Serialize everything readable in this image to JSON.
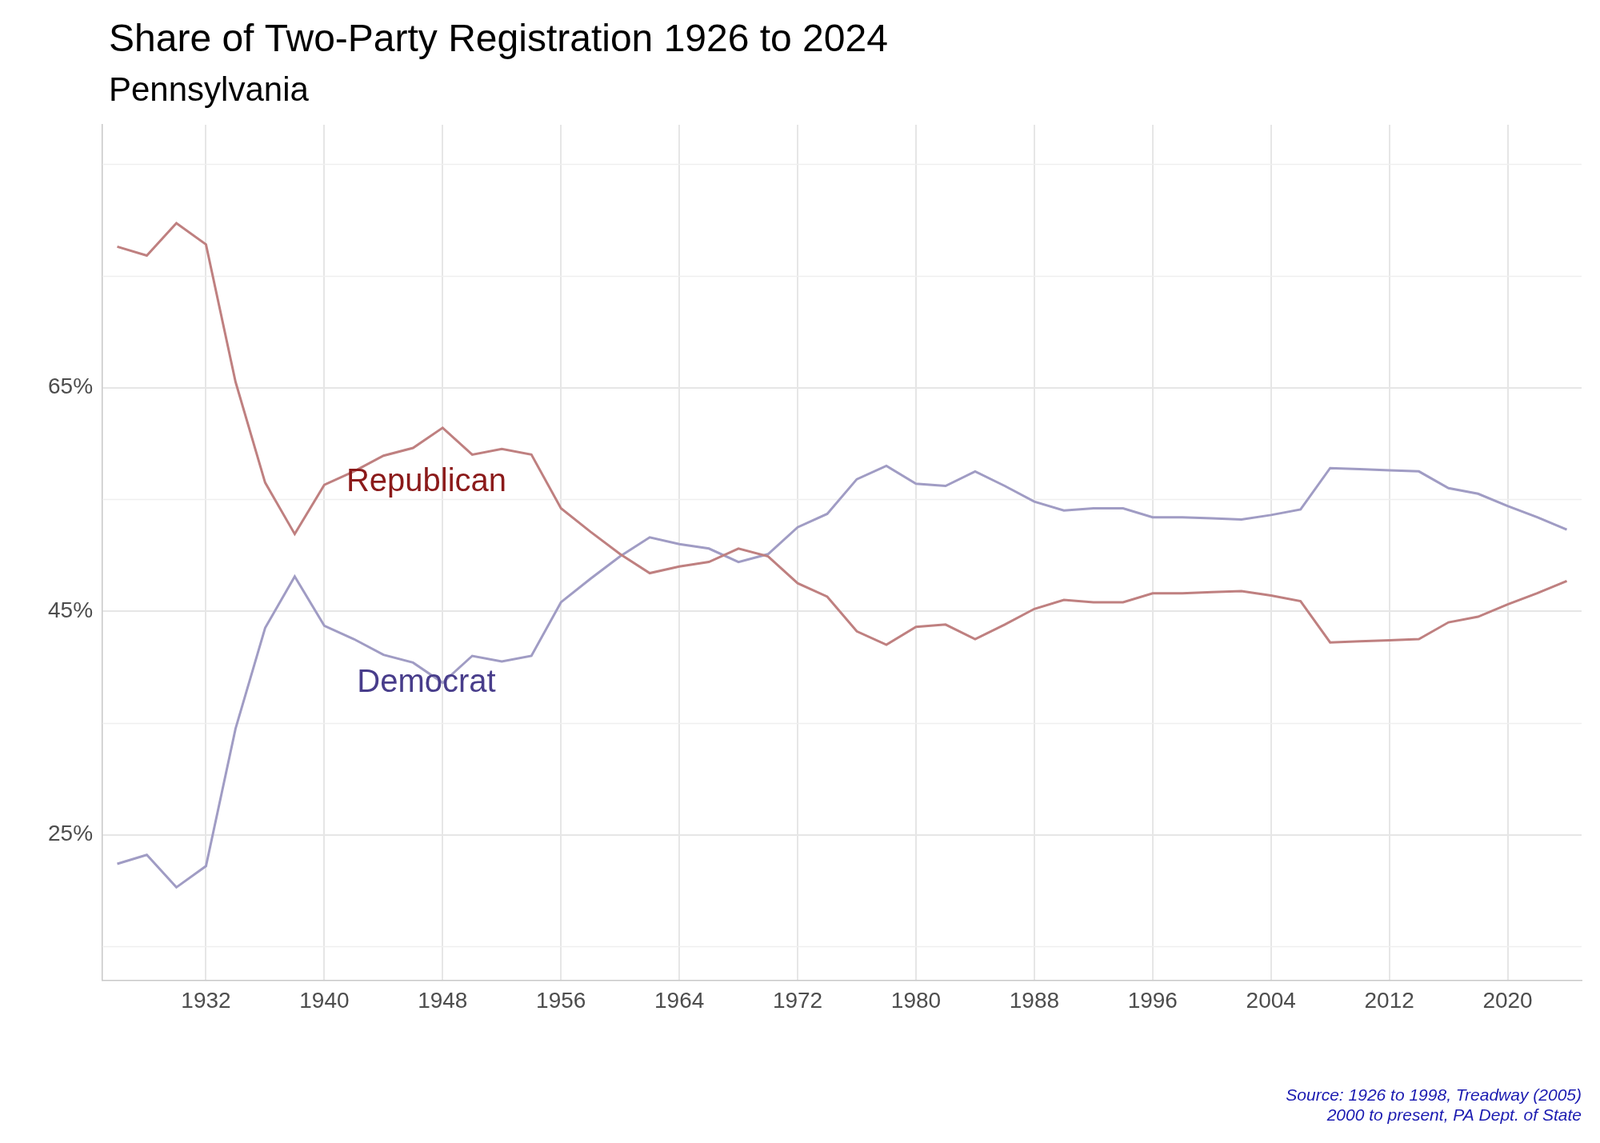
{
  "chart_data": {
    "type": "line",
    "title": "Share of Two-Party Registration 1926 to 2024",
    "subtitle": "Pennsylvania",
    "source": [
      "Source: 1926 to 1998, Treadway (2005)",
      "2000 to present, PA Dept. of State"
    ],
    "x": [
      1926,
      1928,
      1930,
      1932,
      1934,
      1936,
      1938,
      1940,
      1942,
      1944,
      1946,
      1948,
      1950,
      1952,
      1954,
      1956,
      1958,
      1960,
      1962,
      1964,
      1966,
      1968,
      1970,
      1972,
      1974,
      1976,
      1978,
      1980,
      1982,
      1984,
      1986,
      1988,
      1990,
      1992,
      1994,
      1996,
      1998,
      2000,
      2002,
      2004,
      2006,
      2008,
      2010,
      2012,
      2014,
      2016,
      2018,
      2020,
      2022,
      2024
    ],
    "series": [
      {
        "name": "Republican",
        "color": "#bf8080",
        "values": [
          77.6,
          76.8,
          79.7,
          77.8,
          65.5,
          56.5,
          51.9,
          56.3,
          57.5,
          58.9,
          59.6,
          61.4,
          59.0,
          59.5,
          59.0,
          54.2,
          52.1,
          50.1,
          48.4,
          49.0,
          49.4,
          50.6,
          49.9,
          47.5,
          46.3,
          43.2,
          42.0,
          43.6,
          43.8,
          42.5,
          43.8,
          45.2,
          46.0,
          45.8,
          45.8,
          46.6,
          46.6,
          46.7,
          46.8,
          46.4,
          45.9,
          42.2,
          42.3,
          42.4,
          42.5,
          44.0,
          44.5,
          45.6,
          46.6,
          47.7
        ]
      },
      {
        "name": "Democrat",
        "color": "#a09cc4",
        "values": [
          22.4,
          23.2,
          20.3,
          22.2,
          34.5,
          43.5,
          48.1,
          43.7,
          42.5,
          41.1,
          40.4,
          38.6,
          41.0,
          40.5,
          41.0,
          45.8,
          47.9,
          49.9,
          51.6,
          51.0,
          50.6,
          49.4,
          50.1,
          52.5,
          53.7,
          56.8,
          58.0,
          56.4,
          56.2,
          57.5,
          56.2,
          54.8,
          54.0,
          54.2,
          54.2,
          53.4,
          53.4,
          53.3,
          53.2,
          53.6,
          54.1,
          57.8,
          57.7,
          57.6,
          57.5,
          56.0,
          55.5,
          54.4,
          53.4,
          52.3
        ]
      }
    ],
    "xlim": [
      1925,
      2025
    ],
    "xticks": [
      1932,
      1940,
      1948,
      1956,
      1964,
      1972,
      1980,
      1988,
      1996,
      2004,
      2012,
      2020
    ],
    "ylim": [
      12,
      88.5
    ],
    "yticks": [
      {
        "value": 25,
        "label": "25%"
      },
      {
        "value": 45,
        "label": "45%"
      },
      {
        "value": 65,
        "label": "65%"
      }
    ],
    "grid": true,
    "annotations": [
      {
        "text": "Republican",
        "x": 1946.9,
        "y": 56.5,
        "color": "#8b1a1a"
      },
      {
        "text": "Democrat",
        "x": 1946.9,
        "y": 38.6,
        "color": "#483d8b"
      }
    ]
  }
}
